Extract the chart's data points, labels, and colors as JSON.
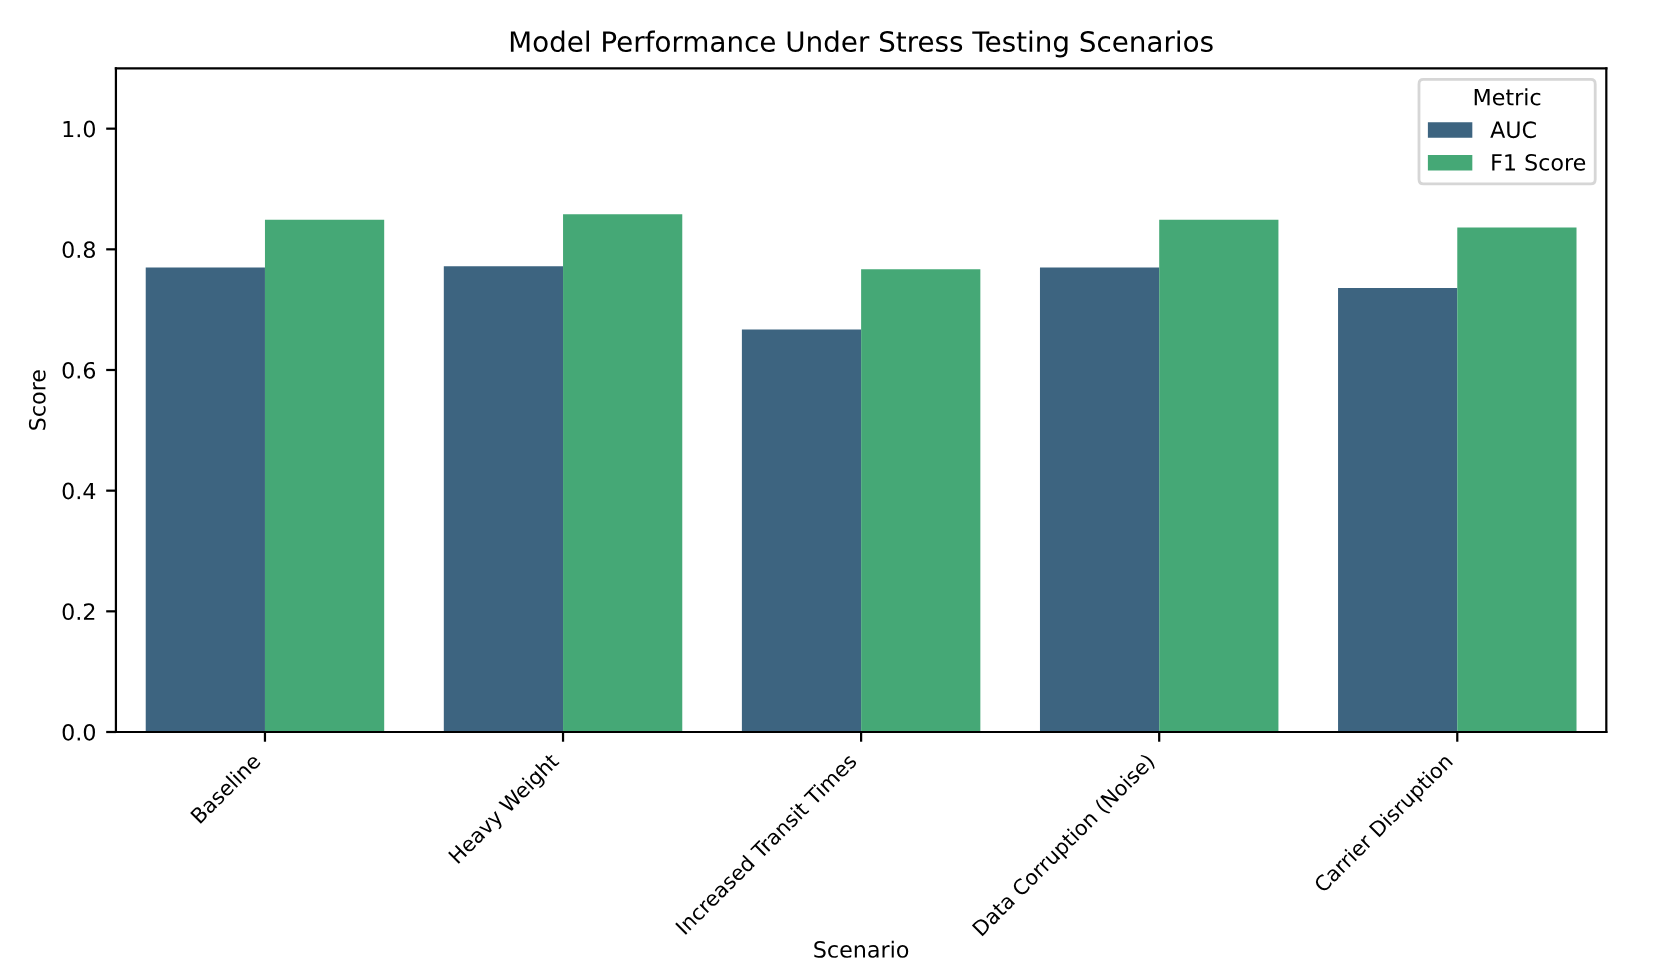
{
  "chart_data": {
    "type": "bar",
    "title": "Model Performance Under Stress Testing Scenarios",
    "xlabel": "Scenario",
    "ylabel": "Score",
    "legend_title": "Metric",
    "categories": [
      "Baseline",
      "Heavy Weight",
      "Increased Transit Times",
      "Data Corruption (Noise)",
      "Carrier Disruption"
    ],
    "series": [
      {
        "name": "AUC",
        "color": "#3d6480",
        "values": [
          0.77,
          0.772,
          0.667,
          0.77,
          0.736
        ]
      },
      {
        "name": "F1 Score",
        "color": "#45a876",
        "values": [
          0.849,
          0.858,
          0.767,
          0.849,
          0.836
        ]
      }
    ],
    "ylim": [
      0,
      1.1
    ],
    "yticks": [
      {
        "value": 0,
        "label": "0.0"
      },
      0.2,
      0.4,
      0.6,
      0.8,
      {
        "value": 1,
        "label": "1.0"
      }
    ],
    "grid": false,
    "legend": "top right"
  }
}
